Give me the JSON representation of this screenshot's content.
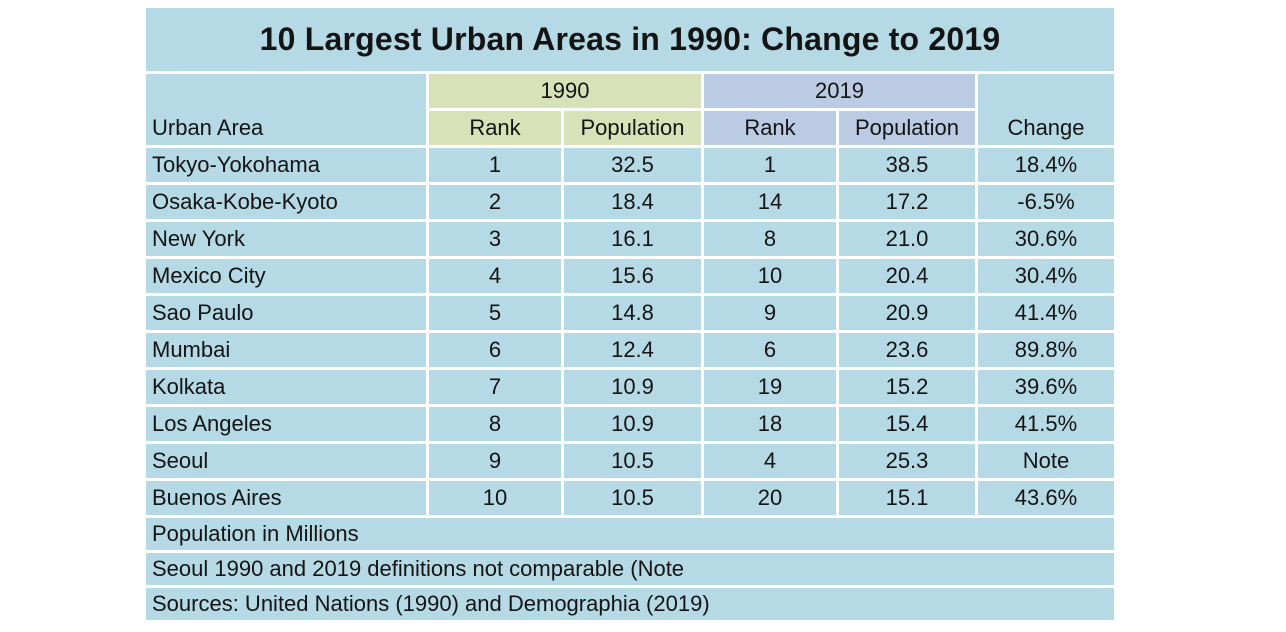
{
  "title": "10 Largest Urban Areas in 1990: Change to 2019",
  "header": {
    "urban_area": "Urban Area",
    "group_1990": "1990",
    "group_2019": "2019",
    "rank_1990": "Rank",
    "population_1990": "Population",
    "rank_2019": "Rank",
    "population_2019": "Population",
    "change": "Change"
  },
  "rows": [
    {
      "area": "Tokyo-Yokohama",
      "rank_1990": "1",
      "pop_1990": "32.5",
      "rank_2019": "1",
      "pop_2019": "38.5",
      "change": "18.4%"
    },
    {
      "area": "Osaka-Kobe-Kyoto",
      "rank_1990": "2",
      "pop_1990": "18.4",
      "rank_2019": "14",
      "pop_2019": "17.2",
      "change": "-6.5%"
    },
    {
      "area": "New York",
      "rank_1990": "3",
      "pop_1990": "16.1",
      "rank_2019": "8",
      "pop_2019": "21.0",
      "change": "30.6%"
    },
    {
      "area": "Mexico City",
      "rank_1990": "4",
      "pop_1990": "15.6",
      "rank_2019": "10",
      "pop_2019": "20.4",
      "change": "30.4%"
    },
    {
      "area": "Sao Paulo",
      "rank_1990": "5",
      "pop_1990": "14.8",
      "rank_2019": "9",
      "pop_2019": "20.9",
      "change": "41.4%"
    },
    {
      "area": "Mumbai",
      "rank_1990": "6",
      "pop_1990": "12.4",
      "rank_2019": "6",
      "pop_2019": "23.6",
      "change": "89.8%"
    },
    {
      "area": "Kolkata",
      "rank_1990": "7",
      "pop_1990": "10.9",
      "rank_2019": "19",
      "pop_2019": "15.2",
      "change": "39.6%"
    },
    {
      "area": "Los Angeles",
      "rank_1990": "8",
      "pop_1990": "10.9",
      "rank_2019": "18",
      "pop_2019": "15.4",
      "change": "41.5%"
    },
    {
      "area": "Seoul",
      "rank_1990": "9",
      "pop_1990": "10.5",
      "rank_2019": "4",
      "pop_2019": "25.3",
      "change": "Note"
    },
    {
      "area": "Buenos Aires",
      "rank_1990": "10",
      "pop_1990": "10.5",
      "rank_2019": "20",
      "pop_2019": "15.1",
      "change": "43.6%"
    }
  ],
  "footnotes": [
    "Population in Millions",
    "Seoul 1990 and 2019 definitions not comparable (Note",
    "Sources: United Nations (1990) and Demographia (2019)"
  ],
  "colors": {
    "cell_blue": "#b6dae5",
    "group_1990_bg": "#d7e2b9",
    "group_2019_bg": "#bacbe3",
    "separator": "#ffffff",
    "text": "#141414"
  },
  "chart_data": {
    "type": "table",
    "title": "10 Largest Urban Areas in 1990: Change to 2019",
    "columns": [
      "Urban Area",
      "1990 Rank",
      "1990 Population",
      "2019 Rank",
      "2019 Population",
      "Change"
    ],
    "rows": [
      [
        "Tokyo-Yokohama",
        1,
        32.5,
        1,
        38.5,
        "18.4%"
      ],
      [
        "Osaka-Kobe-Kyoto",
        2,
        18.4,
        14,
        17.2,
        "-6.5%"
      ],
      [
        "New York",
        3,
        16.1,
        8,
        21.0,
        "30.6%"
      ],
      [
        "Mexico City",
        4,
        15.6,
        10,
        20.4,
        "30.4%"
      ],
      [
        "Sao Paulo",
        5,
        14.8,
        9,
        20.9,
        "41.4%"
      ],
      [
        "Mumbai",
        6,
        12.4,
        6,
        23.6,
        "89.8%"
      ],
      [
        "Kolkata",
        7,
        10.9,
        19,
        15.2,
        "39.6%"
      ],
      [
        "Los Angeles",
        8,
        10.9,
        18,
        15.4,
        "41.5%"
      ],
      [
        "Seoul",
        9,
        10.5,
        4,
        25.3,
        "Note"
      ],
      [
        "Buenos Aires",
        10,
        10.5,
        20,
        15.1,
        "43.6%"
      ]
    ],
    "notes": [
      "Population in Millions",
      "Seoul 1990 and 2019 definitions not comparable (Note",
      "Sources: United Nations (1990) and Demographia (2019)"
    ],
    "units": "millions"
  }
}
